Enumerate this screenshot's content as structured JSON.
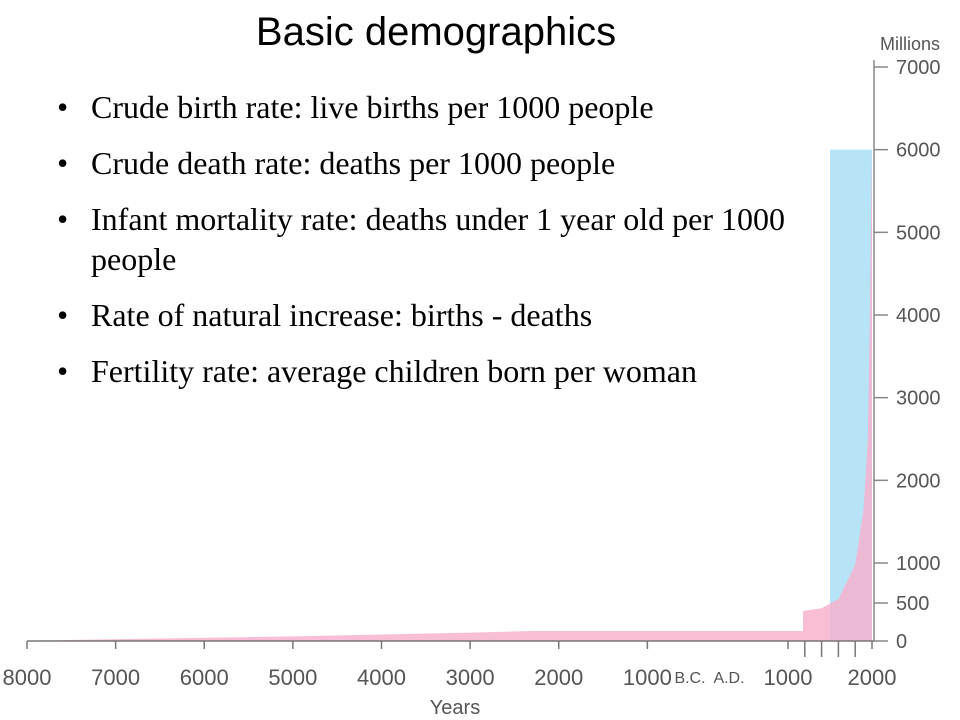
{
  "slide": {
    "title": "Basic demographics",
    "bullet_char": "•",
    "bullets": [
      "Crude birth rate: live births per 1000 people",
      "Crude death rate: deaths per 1000 people",
      "Infant mortality rate: deaths under 1 year old per 1000 people",
      "Rate of natural increase: births - deaths",
      "Fertility rate: average children born per woman"
    ]
  },
  "chart_data": {
    "type": "area",
    "title": "",
    "xlabel": "Years",
    "ylabel": "Millions",
    "era_labels": [
      "B.C.",
      "A.D."
    ],
    "x_ticks": [
      {
        "year": -8000,
        "label": "8000"
      },
      {
        "year": -7000,
        "label": "7000"
      },
      {
        "year": -6000,
        "label": "6000"
      },
      {
        "year": -5000,
        "label": "5000"
      },
      {
        "year": -4000,
        "label": "4000"
      },
      {
        "year": -3000,
        "label": "3000"
      },
      {
        "year": -2000,
        "label": "2000"
      },
      {
        "year": -1000,
        "label": "1000"
      },
      {
        "year": 1000,
        "label": "1000"
      },
      {
        "year": 2000,
        "label": "2000"
      }
    ],
    "x_minor_ticks": [
      1200,
      1400,
      1600,
      1800
    ],
    "y_ticks": [
      {
        "value": 0,
        "label": "0"
      },
      {
        "value": 500,
        "label": "500"
      },
      {
        "value": 1000,
        "label": "1000"
      },
      {
        "value": 2000,
        "label": "2000"
      },
      {
        "value": 3000,
        "label": "3000"
      },
      {
        "value": 4000,
        "label": "4000"
      },
      {
        "value": 5000,
        "label": "5000"
      },
      {
        "value": 6000,
        "label": "6000"
      },
      {
        "value": 7000,
        "label": "7000"
      }
    ],
    "ylim": [
      0,
      7000
    ],
    "xlim": [
      -8000,
      2000
    ],
    "series": [
      {
        "color": "#f7b3cf",
        "points": [
          {
            "year": -8000,
            "value": 5
          },
          {
            "year": -5000,
            "value": 60
          },
          {
            "year": -3000,
            "value": 110
          },
          {
            "year": -1000,
            "value": 170
          },
          {
            "year": 1,
            "value": 250
          },
          {
            "year": 1000,
            "value": 310
          },
          {
            "year": 1200,
            "value": 400
          },
          {
            "year": 1400,
            "value": 430
          },
          {
            "year": 1600,
            "value": 550
          },
          {
            "year": 1800,
            "value": 980
          },
          {
            "year": 1900,
            "value": 1650
          },
          {
            "year": 1950,
            "value": 2500
          },
          {
            "year": 1970,
            "value": 3700
          },
          {
            "year": 1990,
            "value": 5300
          },
          {
            "year": 2000,
            "value": 6000
          }
        ]
      }
    ],
    "highlight": {
      "from_year": 1500,
      "to_year": 2000,
      "value": 6000,
      "color": "#b7e3f7"
    }
  }
}
